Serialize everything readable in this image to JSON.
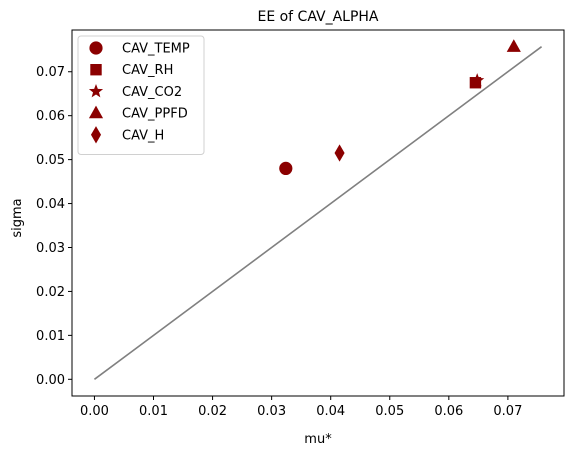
{
  "chart_data": {
    "type": "scatter",
    "title": "EE of CAV_ALPHA",
    "xlabel": "mu*",
    "ylabel": "sigma",
    "xlim": [
      -0.0038,
      0.0795
    ],
    "ylim": [
      -0.0038,
      0.0795
    ],
    "xticks": [
      "0.00",
      "0.01",
      "0.02",
      "0.03",
      "0.04",
      "0.05",
      "0.06",
      "0.07"
    ],
    "yticks": [
      "0.00",
      "0.01",
      "0.02",
      "0.03",
      "0.04",
      "0.05",
      "0.06",
      "0.07"
    ],
    "grid": false,
    "legend_position": "upper left",
    "marker_color": "#8b0000",
    "line_color": "#808080",
    "reference_line": {
      "x": [
        0.0,
        0.0757
      ],
      "y": [
        0.0,
        0.0757
      ]
    },
    "series": [
      {
        "name": "CAV_TEMP",
        "marker": "circle",
        "x": [
          0.0324
        ],
        "y": [
          0.048
        ]
      },
      {
        "name": "CAV_RH",
        "marker": "square",
        "x": [
          0.0645
        ],
        "y": [
          0.0675
        ]
      },
      {
        "name": "CAV_CO2",
        "marker": "star",
        "x": [
          0.0648
        ],
        "y": [
          0.068
        ]
      },
      {
        "name": "CAV_PPFD",
        "marker": "triangle",
        "x": [
          0.071
        ],
        "y": [
          0.0757
        ]
      },
      {
        "name": "CAV_H",
        "marker": "diamond",
        "x": [
          0.0415
        ],
        "y": [
          0.0515
        ]
      }
    ]
  }
}
